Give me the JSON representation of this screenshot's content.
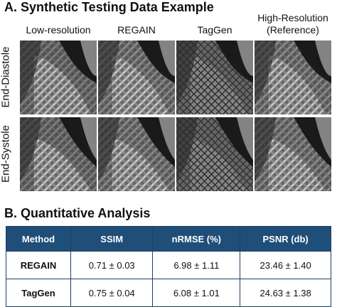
{
  "panel_a": {
    "title": "A. Synthetic Testing Data Example",
    "columns": [
      "Low-resolution",
      "REGAIN",
      "TagGen",
      "High-Resolution\n(Reference)"
    ],
    "rows": [
      "End-Diastole",
      "End-Systole"
    ]
  },
  "panel_b": {
    "title": "B. Quantitative Analysis",
    "table": {
      "header": [
        "Method",
        "SSIM",
        "nRMSE (%)",
        "PSNR (db)"
      ],
      "rows": [
        [
          "REGAIN",
          "0.71 ± 0.03",
          "6.98 ± 1.11",
          "23.46 ± 1.40"
        ],
        [
          "TagGen",
          "0.75 ± 0.04",
          "6.08 ± 1.01",
          "24.63 ± 1.38"
        ]
      ]
    }
  }
}
